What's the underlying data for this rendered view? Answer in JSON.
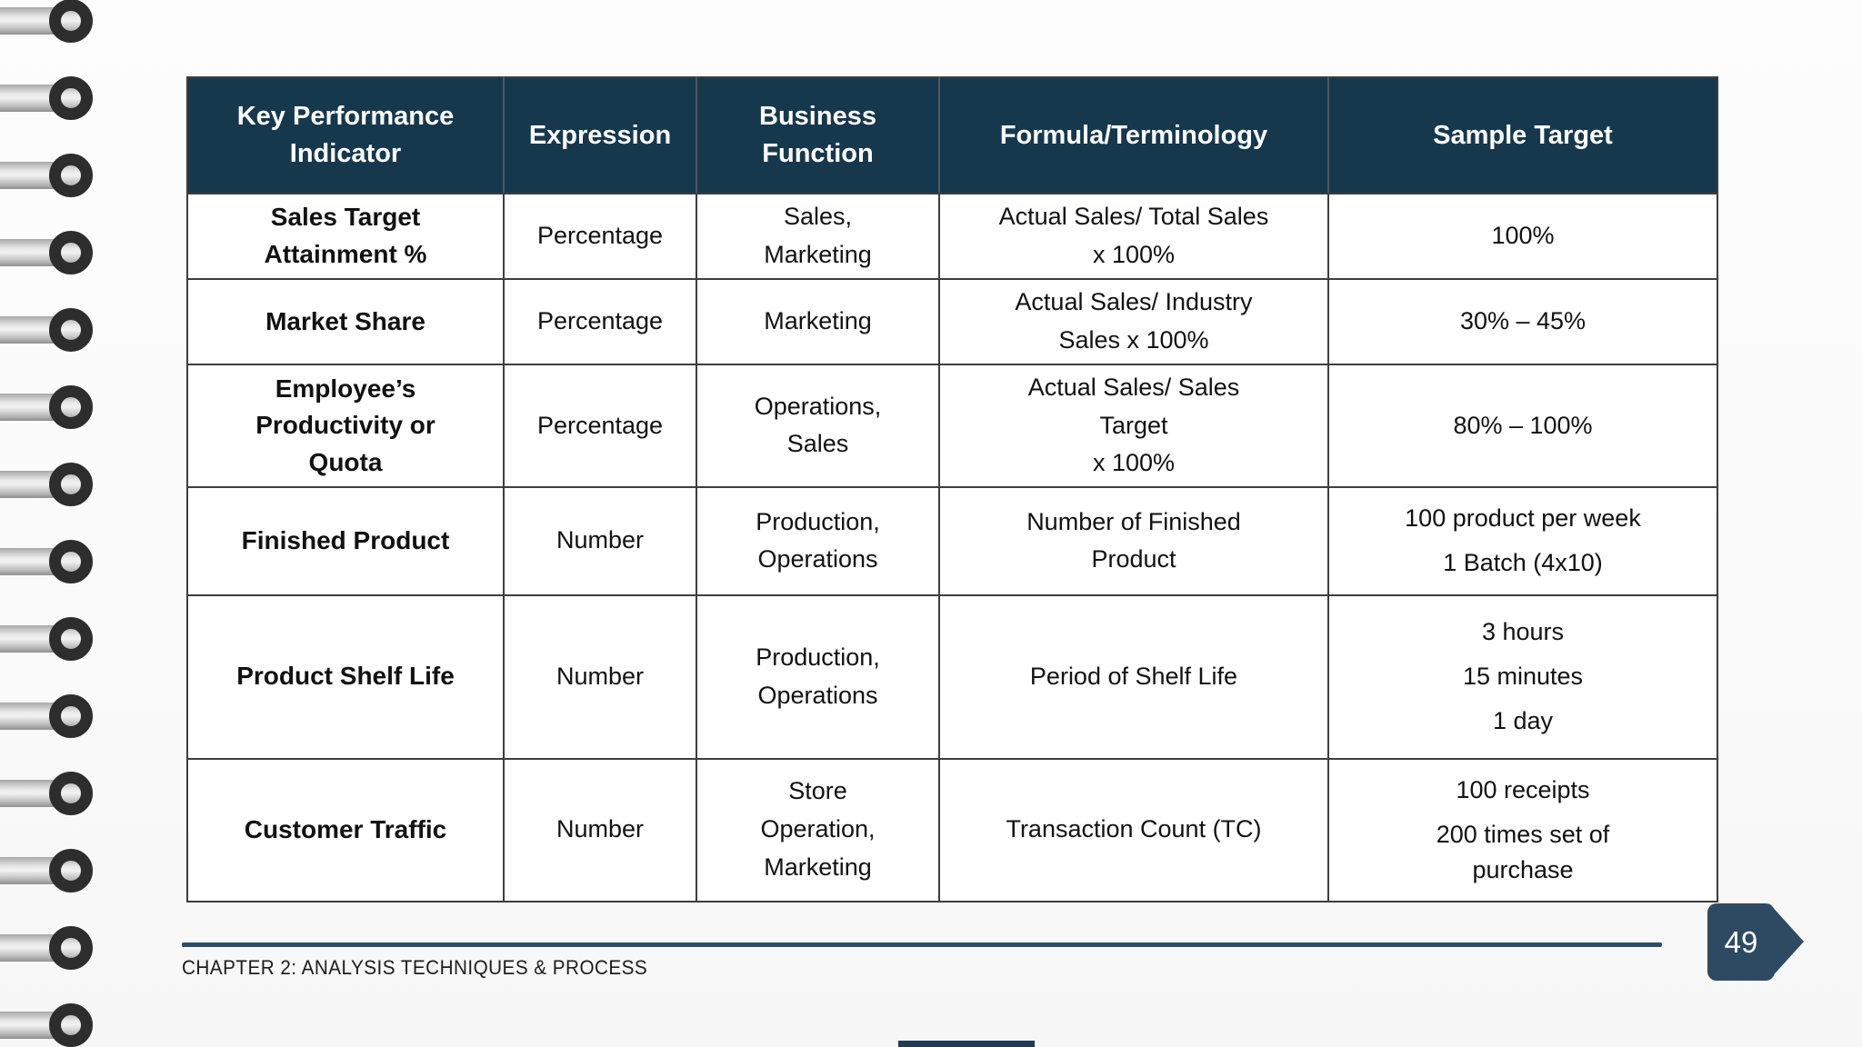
{
  "table": {
    "headers": [
      "Key Performance Indicator",
      "Expression",
      "Business Function",
      "Formula/Terminology",
      "Sample Target"
    ],
    "rows": [
      {
        "kpi": "Sales Target\nAttainment %",
        "expression": "Percentage",
        "business_function": "Sales,\nMarketing",
        "formula": "Actual Sales/ Total Sales\nx 100%",
        "sample_target": [
          "100%"
        ]
      },
      {
        "kpi": "Market Share",
        "expression": "Percentage",
        "business_function": "Marketing",
        "formula": "Actual Sales/ Industry\nSales x 100%",
        "sample_target": [
          "30% – 45%"
        ]
      },
      {
        "kpi": "Employee’s\nProductivity or\nQuota",
        "expression": "Percentage",
        "business_function": "Operations,\nSales",
        "formula": "Actual Sales/ Sales\nTarget\nx 100%",
        "sample_target": [
          "80% – 100%"
        ]
      },
      {
        "kpi": "Finished Product",
        "expression": "Number",
        "business_function": "Production,\nOperations",
        "formula": "Number of Finished\nProduct",
        "sample_target": [
          "100 product per week",
          "1 Batch (4x10)"
        ]
      },
      {
        "kpi": "Product Shelf Life",
        "expression": "Number",
        "business_function": "Production,\nOperations",
        "formula": "Period of Shelf Life",
        "sample_target": [
          "3 hours",
          "15 minutes",
          "1 day"
        ]
      },
      {
        "kpi": "Customer Traffic",
        "expression": "Number",
        "business_function": "Store\nOperation,\nMarketing",
        "formula": "Transaction Count (TC)",
        "sample_target": [
          "100 receipts",
          "200 times set of\npurchase"
        ]
      }
    ]
  },
  "footer": {
    "chapter_label": "CHAPTER 2: ANALYSIS TECHNIQUES & PROCESS",
    "page_number": "49"
  },
  "colors": {
    "header_bg": "#16384d",
    "header_text": "#ffffff",
    "body_text": "#111111",
    "table_border": "#3d3d3d",
    "accent_navy": "#2e4a63",
    "footer_line": "#2d4d66",
    "binding_ring": "#2d2d2d"
  }
}
